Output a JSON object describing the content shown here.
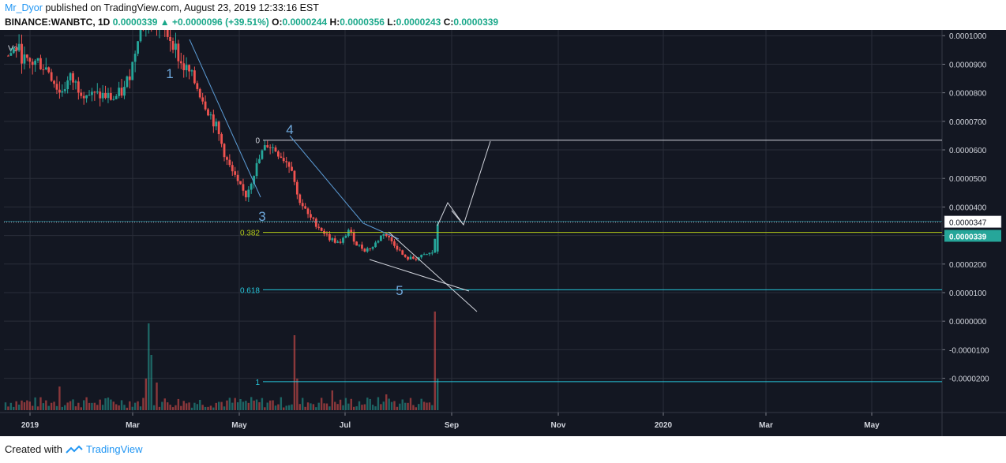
{
  "header": {
    "user": "Mr_Dyor",
    "published_text": "published on TradingView.com, August 23, 2019 12:33:16 EST",
    "symbol": "BINANCE:WANBTC, 1D",
    "last": "0.0000339",
    "change": "+0.0000096 (+39.51%)",
    "o_label": "O:",
    "o_val": "0.0000244",
    "h_label": "H:",
    "h_val": "0.0000356",
    "l_label": "L:",
    "l_val": "0.0000243",
    "c_label": "C:",
    "c_val": "0.0000339"
  },
  "footer": {
    "created_with": "Created with",
    "brand": "TradingView"
  },
  "colors": {
    "background": "#131722",
    "grid": "#2a2e39",
    "up": "#26a69a",
    "down": "#ef5350",
    "vol_up": "#26a69a",
    "vol_down": "#ef5350",
    "level_382": "#b5cc18",
    "level_618": "#26c6da",
    "level_1": "#26c6da",
    "level_0": "#d1d4dc",
    "trend": "#5b9bd5",
    "wave_label": "#6fa8dc",
    "last_price_bg": "#26a69a"
  },
  "chart_data": {
    "type": "candlestick",
    "x_ticks": [
      "2019",
      "Mar",
      "May",
      "Jul",
      "Sep",
      "Nov",
      "2020",
      "Mar",
      "May"
    ],
    "y_ticks": [
      "0.0001000",
      "0.0000900",
      "0.0000800",
      "0.0000700",
      "0.0000600",
      "0.0000500",
      "0.0000400",
      "0.0000300",
      "0.0000200",
      "0.0000100",
      "0.0000000",
      "-0.0000100",
      "-0.0000200"
    ],
    "ylim": [
      -3.2e-05,
      0.000102
    ],
    "price_labels": {
      "crosshair": "0.0000347",
      "last": "0.0000339"
    },
    "volume_label": "Vol",
    "fib_levels": [
      {
        "label": "0",
        "value": 6.34e-05
      },
      {
        "label": "0.382",
        "value": 3.11e-05
      },
      {
        "label": "0.618",
        "value": 1.1e-05
      },
      {
        "label": "1",
        "value": -2.12e-05
      }
    ],
    "wave_labels": [
      "1",
      "3",
      "4",
      "5"
    ],
    "close_path": [
      [
        1,
        9.3e-05
      ],
      [
        4,
        9.6e-05
      ],
      [
        8,
        9e-05
      ],
      [
        12,
        9.1e-05
      ],
      [
        16,
        8.8e-05
      ],
      [
        20,
        8e-05
      ],
      [
        24,
        8.5e-05
      ],
      [
        28,
        8.1e-05
      ],
      [
        32,
        7.9e-05
      ],
      [
        36,
        7.9e-05
      ],
      [
        40,
        7.8e-05
      ],
      [
        44,
        8.1e-05
      ],
      [
        47,
        9e-05
      ],
      [
        49,
        0.000101
      ],
      [
        53,
        0.000106
      ],
      [
        58,
        0.000103
      ],
      [
        62,
        9.8e-05
      ],
      [
        65,
        9e-05
      ],
      [
        68,
        8.7e-05
      ],
      [
        71,
        8.2e-05
      ],
      [
        74,
        7.6e-05
      ],
      [
        78,
        6.8e-05
      ],
      [
        82,
        5.6e-05
      ],
      [
        86,
        4.8e-05
      ],
      [
        89,
        4.4e-05
      ],
      [
        92,
        5.2e-05
      ],
      [
        95,
        5.9e-05
      ],
      [
        97,
        6.2e-05
      ],
      [
        100,
        6e-05
      ],
      [
        103,
        5.7e-05
      ],
      [
        106,
        5.4e-05
      ],
      [
        108,
        4.4e-05
      ],
      [
        112,
        3.7e-05
      ],
      [
        116,
        3.3e-05
      ],
      [
        120,
        2.9e-05
      ],
      [
        124,
        2.7e-05
      ],
      [
        127,
        3.2e-05
      ],
      [
        130,
        2.7e-05
      ],
      [
        133,
        2.5e-05
      ],
      [
        136,
        2.6e-05
      ],
      [
        140,
        3.1e-05
      ],
      [
        144,
        2.7e-05
      ],
      [
        148,
        2.2e-05
      ],
      [
        152,
        2.2e-05
      ],
      [
        155,
        2.3e-05
      ],
      [
        158,
        2.4e-05
      ],
      [
        160,
        3.39e-05
      ]
    ]
  }
}
